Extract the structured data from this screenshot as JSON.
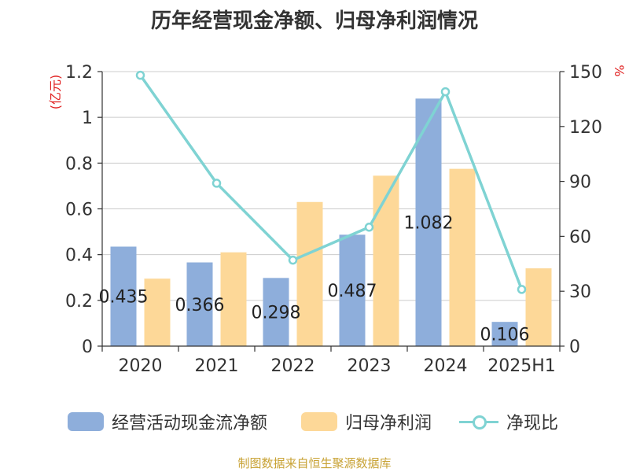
{
  "chart_data": {
    "type": "bar",
    "title": "历年经营现金净额、归母净利润情况",
    "categories": [
      "2020",
      "2021",
      "2022",
      "2023",
      "2024",
      "2025H1"
    ],
    "y_left": {
      "unit_label": "(亿元)",
      "ylim": [
        0,
        1.2
      ],
      "ticks": [
        "0",
        "0.2",
        "0.4",
        "0.6",
        "0.8",
        "1",
        "1.2"
      ]
    },
    "y_right": {
      "unit_label": "%",
      "ylim": [
        0,
        150
      ],
      "ticks": [
        "0",
        "30",
        "60",
        "90",
        "120",
        "150"
      ]
    },
    "series": [
      {
        "name": "经营活动现金流净额",
        "kind": "bar",
        "axis": "left",
        "color": "#8eaedb",
        "values": [
          0.435,
          0.366,
          0.298,
          0.487,
          1.082,
          0.106
        ],
        "labels": [
          "0.435",
          "0.366",
          "0.298",
          "0.487",
          "1.082",
          "0.106"
        ]
      },
      {
        "name": "归母净利润",
        "kind": "bar",
        "axis": "left",
        "color": "#fdd898",
        "values": [
          0.295,
          0.41,
          0.63,
          0.745,
          0.775,
          0.34
        ]
      },
      {
        "name": "净现比",
        "kind": "line",
        "axis": "right",
        "color": "#7fd3d3",
        "values": [
          148,
          89,
          47,
          65,
          139,
          31
        ]
      }
    ],
    "grid": true,
    "legend_position": "bottom"
  },
  "source": "制图数据来自恒生聚源数据库"
}
